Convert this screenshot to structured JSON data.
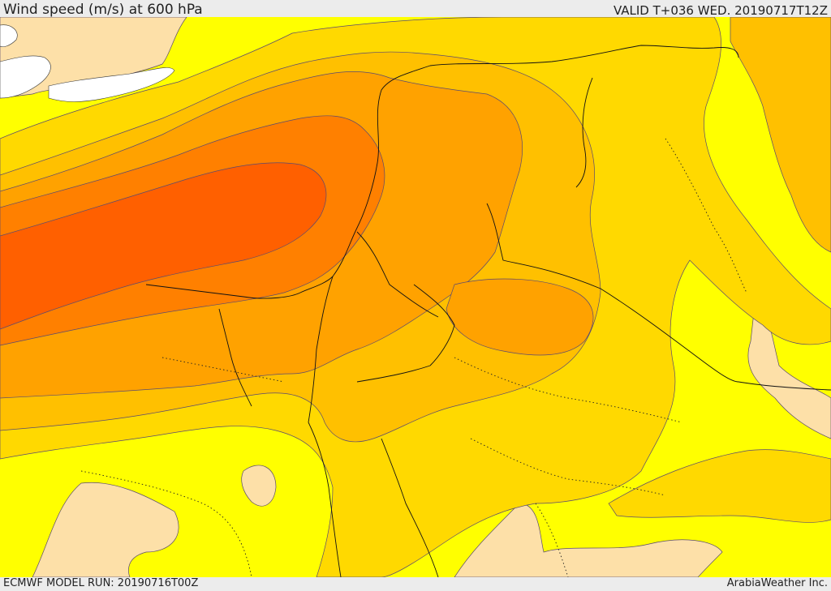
{
  "header": {
    "title": "Wind speed (m/s) at 600 hPa",
    "valid": "VALID T+036 WED. 20190717T12Z"
  },
  "footer": {
    "model_run": "ECMWF MODEL RUN: 20190716T00Z",
    "provider": "ArabiaWeather Inc."
  },
  "map": {
    "field": "wind speed",
    "level": "600 hPa",
    "color_bands": [
      "#fde0a8",
      "#ffff00",
      "#ffd900",
      "#ffc000",
      "#ffa200",
      "#ff8000",
      "#ff6000"
    ],
    "land_white": "#ffffff",
    "contour_color": "#5a4a70",
    "border_color": "#111111"
  }
}
